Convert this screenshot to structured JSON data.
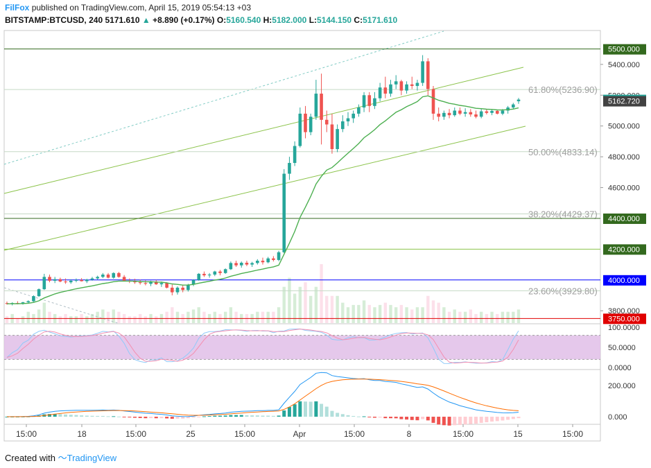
{
  "header": {
    "author": "FilFox",
    "published_text": "published on TradingView.com, April 15, 2019 05:54:13 +03",
    "symbol": "BITSTAMP:BTCUSD, 240",
    "last": "5171.610",
    "change": "+8.890 (+0.17%)",
    "o_label": "O:",
    "o_value": "5160.540",
    "h_label": "H:",
    "h_value": "5182.000",
    "l_label": "L:",
    "l_value": "5144.150",
    "c_label": "C:",
    "c_value": "5171.610"
  },
  "footer": {
    "created_with": "Created with",
    "brand": "TradingView"
  },
  "colors": {
    "up": "#26a69a",
    "down": "#ef5350",
    "ma": "#4caf50",
    "channel": "#8bc34a",
    "level": "#33691e",
    "blue_level": "#0000ff",
    "red_level": "#e00000",
    "stoch_band": "#e1bee7",
    "stoch_k": "#90caf9",
    "stoch_d": "#f48fb1",
    "macd": "#2196f3",
    "signal": "#ff6d00"
  },
  "chart_data": {
    "type": "candlestick",
    "x_labels": [
      "15:00",
      "18",
      "15:00",
      "25",
      "15:00",
      "Apr",
      "15:00",
      "8",
      "15:00",
      "15",
      "15:00"
    ],
    "price_axis": {
      "ticks": [
        "5400.000",
        "5200.000",
        "5000.000",
        "4800.000",
        "4600.000",
        "3800.000"
      ],
      "range": [
        3720,
        5620
      ]
    },
    "price_labels": [
      {
        "value": 5500,
        "text": "5500.000",
        "style": "level"
      },
      {
        "value": 5171.61,
        "text": "5171.610",
        "style": "up"
      },
      {
        "value": 5162.72,
        "text": "5162.720",
        "style": "dark"
      },
      {
        "value": 4400,
        "text": "4400.000",
        "style": "level"
      },
      {
        "value": 4200,
        "text": "4200.000",
        "style": "level"
      },
      {
        "value": 4000,
        "text": "4000.000",
        "style": "blue"
      },
      {
        "value": 3750,
        "text": "3750.000",
        "style": "red"
      }
    ],
    "horizontal_levels": [
      {
        "value": 5500,
        "kind": "level"
      },
      {
        "value": 4400,
        "kind": "level"
      },
      {
        "value": 4200,
        "kind": "level_thin"
      },
      {
        "value": 4000,
        "kind": "blue"
      },
      {
        "value": 3750,
        "kind": "red"
      }
    ],
    "fibonacci": [
      {
        "value": 5236.9,
        "label": "61.80%(5236.90)"
      },
      {
        "value": 4833.14,
        "label": "50.00%(4833.14)"
      },
      {
        "value": 4429.37,
        "label": "38.20%(4429.37)"
      },
      {
        "value": 3929.8,
        "label": "23.60%(3929.80)"
      }
    ],
    "candles_ohlc": [
      [
        3850,
        3860,
        3840,
        3845
      ],
      [
        3845,
        3855,
        3835,
        3850
      ],
      [
        3850,
        3862,
        3842,
        3848
      ],
      [
        3848,
        3858,
        3840,
        3855
      ],
      [
        3855,
        3868,
        3848,
        3862
      ],
      [
        3862,
        3900,
        3858,
        3895
      ],
      [
        3895,
        3945,
        3890,
        3940
      ],
      [
        3940,
        4040,
        3935,
        4020
      ],
      [
        4020,
        4035,
        3985,
        3995
      ],
      [
        3995,
        4020,
        3980,
        4005
      ],
      [
        4005,
        4015,
        3985,
        3990
      ],
      [
        3990,
        4010,
        3975,
        3985
      ],
      [
        3985,
        4005,
        3975,
        3995
      ],
      [
        3995,
        4010,
        3985,
        4000
      ],
      [
        4000,
        4012,
        3990,
        3992
      ],
      [
        3992,
        4008,
        3980,
        4002
      ],
      [
        4002,
        4020,
        3995,
        4010
      ],
      [
        4010,
        4028,
        4002,
        4020
      ],
      [
        4020,
        4045,
        4012,
        4035
      ],
      [
        4035,
        4045,
        4010,
        4015
      ],
      [
        4015,
        4050,
        4008,
        4045
      ],
      [
        4045,
        4052,
        4015,
        4020
      ],
      [
        4020,
        4032,
        3990,
        3995
      ],
      [
        3995,
        4010,
        3980,
        3990
      ],
      [
        3990,
        4008,
        3975,
        3985
      ],
      [
        3985,
        4002,
        3970,
        3980
      ],
      [
        3980,
        3998,
        3965,
        3975
      ],
      [
        3975,
        3995,
        3960,
        3990
      ],
      [
        3990,
        4000,
        3968,
        3972
      ],
      [
        3972,
        3990,
        3955,
        3980
      ],
      [
        3980,
        3985,
        3945,
        3950
      ],
      [
        3950,
        3970,
        3900,
        3920
      ],
      [
        3920,
        3958,
        3905,
        3950
      ],
      [
        3950,
        3965,
        3920,
        3935
      ],
      [
        3935,
        3975,
        3925,
        3970
      ],
      [
        3970,
        4005,
        3960,
        4000
      ],
      [
        4000,
        4045,
        3995,
        4040
      ],
      [
        4040,
        4055,
        4020,
        4030
      ],
      [
        4030,
        4045,
        4015,
        4035
      ],
      [
        4035,
        4060,
        4025,
        4055
      ],
      [
        4055,
        4065,
        4030,
        4045
      ],
      [
        4045,
        4075,
        4040,
        4070
      ],
      [
        4070,
        4120,
        4065,
        4110
      ],
      [
        4110,
        4125,
        4085,
        4095
      ],
      [
        4095,
        4120,
        4080,
        4112
      ],
      [
        4112,
        4125,
        4090,
        4100
      ],
      [
        4100,
        4118,
        4085,
        4110
      ],
      [
        4110,
        4135,
        4100,
        4125
      ],
      [
        4125,
        4145,
        4100,
        4115
      ],
      [
        4115,
        4150,
        4108,
        4140
      ],
      [
        4140,
        4155,
        4120,
        4130
      ],
      [
        4130,
        4190,
        4122,
        4180
      ],
      [
        4180,
        4720,
        4175,
        4690
      ],
      [
        4690,
        4800,
        4650,
        4760
      ],
      [
        4760,
        4900,
        4740,
        4870
      ],
      [
        4870,
        5120,
        4860,
        5080
      ],
      [
        5080,
        5130,
        4920,
        4960
      ],
      [
        4960,
        5080,
        4940,
        5060
      ],
      [
        5060,
        5300,
        5040,
        5210
      ],
      [
        5210,
        5340,
        4880,
        5040
      ],
      [
        5040,
        5100,
        4960,
        5010
      ],
      [
        5010,
        5080,
        4820,
        4850
      ],
      [
        4850,
        5010,
        4830,
        4980
      ],
      [
        4980,
        5070,
        4960,
        5030
      ],
      [
        5030,
        5090,
        5000,
        5050
      ],
      [
        5050,
        5100,
        5020,
        5080
      ],
      [
        5080,
        5140,
        5060,
        5120
      ],
      [
        5120,
        5220,
        5090,
        5200
      ],
      [
        5200,
        5220,
        5090,
        5130
      ],
      [
        5130,
        5220,
        5110,
        5180
      ],
      [
        5180,
        5280,
        5160,
        5250
      ],
      [
        5250,
        5320,
        5180,
        5210
      ],
      [
        5210,
        5300,
        5190,
        5270
      ],
      [
        5270,
        5330,
        5240,
        5290
      ],
      [
        5290,
        5300,
        5200,
        5230
      ],
      [
        5230,
        5290,
        5210,
        5270
      ],
      [
        5270,
        5320,
        5240,
        5260
      ],
      [
        5260,
        5300,
        5230,
        5280
      ],
      [
        5280,
        5460,
        5260,
        5420
      ],
      [
        5420,
        5440,
        5200,
        5240
      ],
      [
        5240,
        5260,
        5040,
        5080
      ],
      [
        5080,
        5120,
        5030,
        5060
      ],
      [
        5060,
        5100,
        5040,
        5085
      ],
      [
        5085,
        5110,
        5050,
        5070
      ],
      [
        5070,
        5120,
        5060,
        5100
      ],
      [
        5100,
        5120,
        5070,
        5080
      ],
      [
        5080,
        5115,
        5060,
        5090
      ],
      [
        5090,
        5110,
        5060,
        5075
      ],
      [
        5075,
        5100,
        5050,
        5060
      ],
      [
        5060,
        5110,
        5050,
        5095
      ],
      [
        5095,
        5110,
        5075,
        5085
      ],
      [
        5085,
        5105,
        5070,
        5098
      ],
      [
        5098,
        5105,
        5075,
        5080
      ],
      [
        5080,
        5110,
        5070,
        5100
      ],
      [
        5100,
        5130,
        5080,
        5120
      ],
      [
        5120,
        5150,
        5110,
        5140
      ],
      [
        5160.54,
        5182,
        5144.15,
        5171.61
      ]
    ],
    "volume": [
      3,
      4,
      2,
      3,
      5,
      4,
      6,
      9,
      5,
      4,
      3,
      4,
      3,
      3,
      4,
      3,
      4,
      5,
      6,
      5,
      6,
      5,
      4,
      3,
      3,
      4,
      3,
      4,
      3,
      4,
      5,
      7,
      5,
      4,
      5,
      6,
      7,
      5,
      4,
      5,
      4,
      5,
      7,
      5,
      4,
      4,
      4,
      5,
      5,
      5,
      5,
      7,
      16,
      20,
      13,
      16,
      18,
      12,
      16,
      26,
      12,
      12,
      12,
      9,
      7,
      8,
      8,
      10,
      8,
      7,
      8,
      9,
      8,
      7,
      8,
      7,
      6,
      7,
      7,
      12,
      10,
      9,
      7,
      5,
      6,
      5,
      5,
      6,
      4,
      5,
      4,
      5,
      4,
      5,
      5,
      5,
      6
    ],
    "ma_line_from_index": 0,
    "stoch_axis": {
      "ticks": [
        "100.0000",
        "50.0000",
        "0.0000"
      ],
      "range": [
        0,
        100
      ],
      "band": [
        20,
        80
      ]
    },
    "macd_axis": {
      "ticks": [
        "200.000",
        "0.000"
      ],
      "range": [
        -40,
        290
      ]
    }
  }
}
